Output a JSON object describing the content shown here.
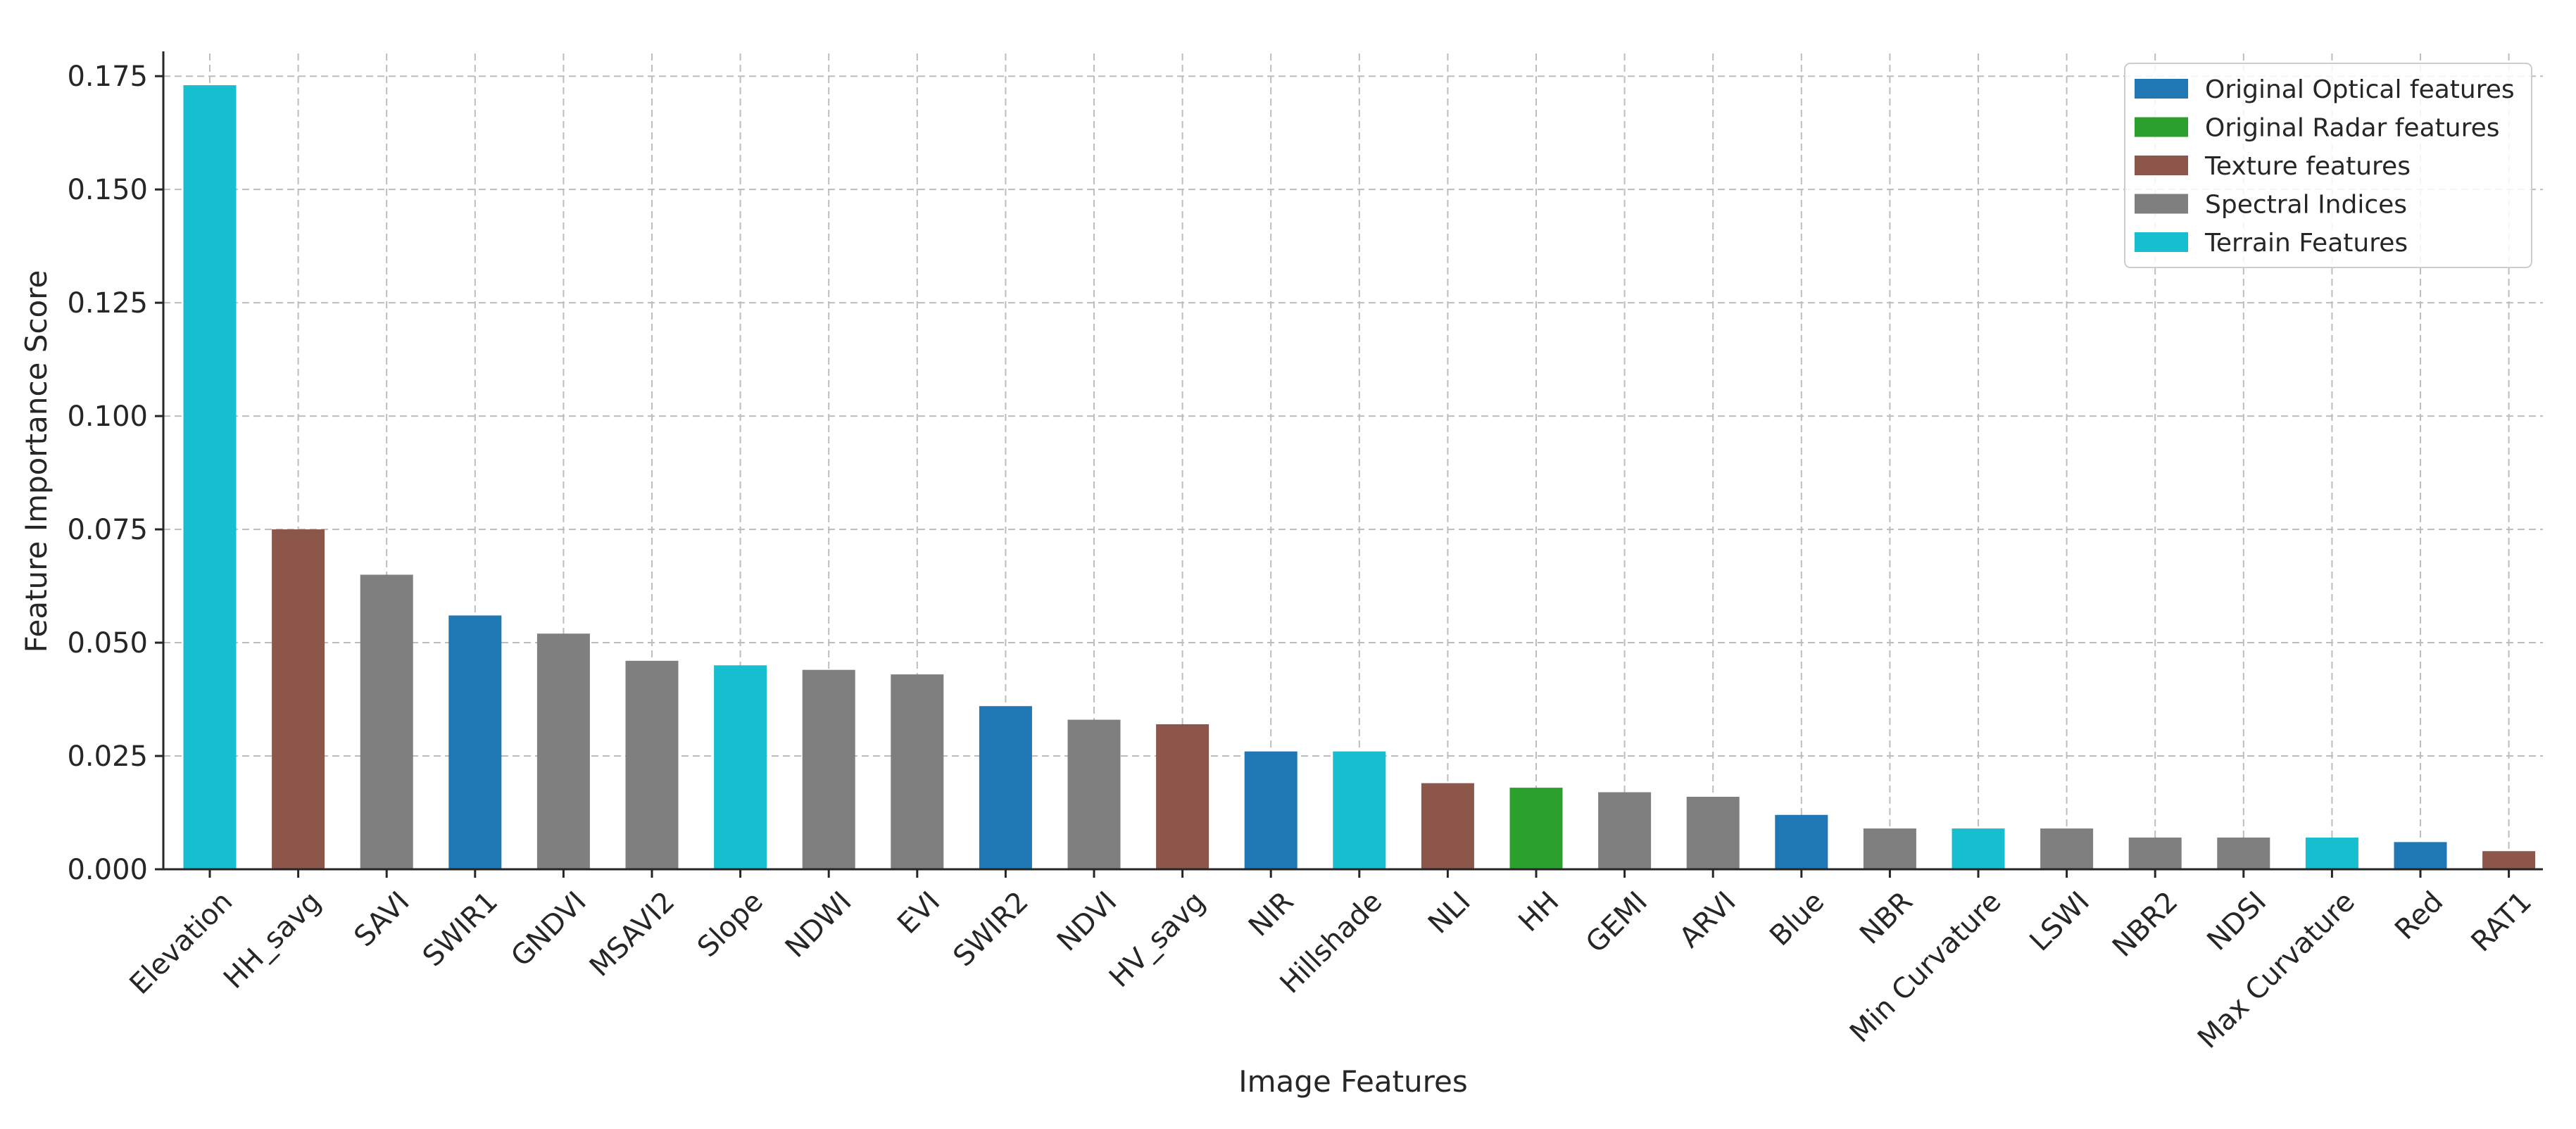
{
  "chart_data": {
    "type": "bar",
    "title": "",
    "xlabel": "Image Features",
    "ylabel": "Feature Importance Score",
    "ylim": [
      0,
      0.18
    ],
    "yticks": [
      "0.000",
      "0.025",
      "0.050",
      "0.075",
      "0.100",
      "0.125",
      "0.150",
      "0.175"
    ],
    "grid": true,
    "legend_position": "top-right",
    "groups": [
      {
        "name": "Original Optical features",
        "color": "#1f77b4"
      },
      {
        "name": "Original Radar features",
        "color": "#2ca02c"
      },
      {
        "name": "Texture features",
        "color": "#8c564b"
      },
      {
        "name": "Spectral Indices",
        "color": "#7f7f7f"
      },
      {
        "name": "Terrain Features",
        "color": "#17becf"
      }
    ],
    "categories": [
      "Elevation",
      "HH_savg",
      "SAVI",
      "SWIR1",
      "GNDVI",
      "MSAVI2",
      "Slope",
      "NDWI",
      "EVI",
      "SWIR2",
      "NDVI",
      "HV_savg",
      "NIR",
      "Hillshade",
      "NLI",
      "HH",
      "GEMI",
      "ARVI",
      "Blue",
      "NBR",
      "Min Curvature",
      "LSWI",
      "NBR2",
      "NDSI",
      "Max Curvature",
      "Red",
      "RAT1"
    ],
    "values": [
      0.173,
      0.075,
      0.065,
      0.056,
      0.052,
      0.046,
      0.045,
      0.044,
      0.043,
      0.036,
      0.033,
      0.032,
      0.026,
      0.026,
      0.019,
      0.018,
      0.017,
      0.016,
      0.012,
      0.009,
      0.009,
      0.009,
      0.007,
      0.007,
      0.007,
      0.006,
      0.004
    ],
    "bar_groups": [
      4,
      2,
      3,
      0,
      3,
      3,
      4,
      3,
      3,
      0,
      3,
      2,
      0,
      4,
      2,
      1,
      3,
      3,
      0,
      3,
      4,
      3,
      3,
      3,
      4,
      0,
      2
    ]
  }
}
